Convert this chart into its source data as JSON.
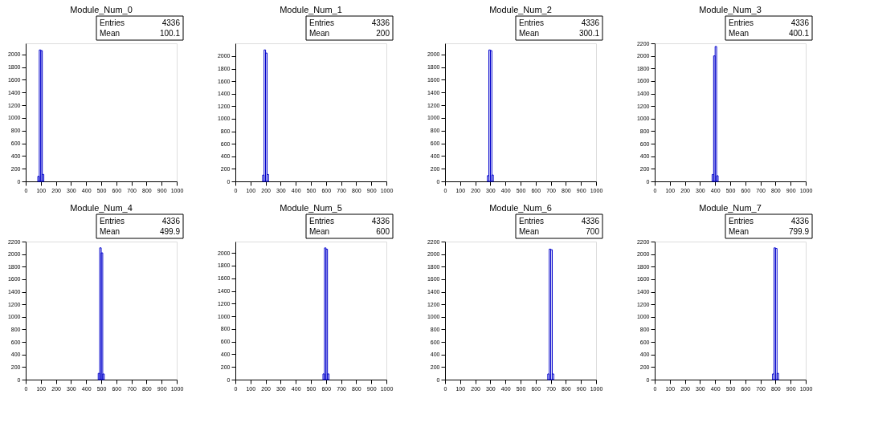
{
  "chart_data": [
    {
      "type": "histogram",
      "title": "Module_Num_0",
      "bins": [
        80,
        90,
        100,
        110,
        120
      ],
      "values": [
        80,
        2070,
        2060,
        110
      ],
      "color": "#0000cc",
      "xlim": [
        0,
        1000
      ],
      "xticks": [
        0,
        100,
        200,
        300,
        400,
        500,
        600,
        700,
        800,
        900,
        1000
      ],
      "ylim": [
        0,
        2174
      ],
      "yticks": [
        0,
        200,
        400,
        600,
        800,
        1000,
        1200,
        1400,
        1600,
        1800,
        2000
      ],
      "annotations": [
        "Entries",
        "4336",
        "Mean",
        "100.1"
      ]
    },
    {
      "type": "histogram",
      "title": "Module_Num_1",
      "bins": [
        180,
        190,
        200,
        210,
        220
      ],
      "values": [
        100,
        2100,
        2050,
        110
      ],
      "color": "#0000cc",
      "xlim": [
        0,
        1000
      ],
      "xticks": [
        0,
        100,
        200,
        300,
        400,
        500,
        600,
        700,
        800,
        900,
        1000
      ],
      "ylim": [
        0,
        2205
      ],
      "yticks": [
        0,
        200,
        400,
        600,
        800,
        1000,
        1200,
        1400,
        1600,
        1800,
        2000
      ],
      "annotations": [
        "Entries",
        "4336",
        "Mean",
        "200"
      ]
    },
    {
      "type": "histogram",
      "title": "Module_Num_2",
      "bins": [
        280,
        290,
        300,
        310,
        320
      ],
      "values": [
        90,
        2070,
        2060,
        100
      ],
      "color": "#0000cc",
      "xlim": [
        0,
        1000
      ],
      "xticks": [
        0,
        100,
        200,
        300,
        400,
        500,
        600,
        700,
        800,
        900,
        1000
      ],
      "ylim": [
        0,
        2174
      ],
      "yticks": [
        0,
        200,
        400,
        600,
        800,
        1000,
        1200,
        1400,
        1600,
        1800,
        2000
      ],
      "annotations": [
        "Entries",
        "4336",
        "Mean",
        "300.1"
      ]
    },
    {
      "type": "histogram",
      "title": "Module_Num_3",
      "bins": [
        380,
        390,
        400,
        410,
        420
      ],
      "values": [
        110,
        2000,
        2150,
        90
      ],
      "color": "#0000cc",
      "xlim": [
        0,
        1000
      ],
      "xticks": [
        0,
        100,
        200,
        300,
        400,
        500,
        600,
        700,
        800,
        900,
        1000
      ],
      "ylim": [
        0,
        2200
      ],
      "yticks": [
        0,
        200,
        400,
        600,
        800,
        1000,
        1200,
        1400,
        1600,
        1800,
        2000,
        2200
      ],
      "annotations": [
        "Entries",
        "4336",
        "Mean",
        "400.1"
      ]
    },
    {
      "type": "histogram",
      "title": "Module_Num_4",
      "bins": [
        480,
        490,
        500,
        510,
        520
      ],
      "values": [
        100,
        2100,
        2020,
        90
      ],
      "color": "#0000cc",
      "xlim": [
        0,
        1000
      ],
      "xticks": [
        0,
        100,
        200,
        300,
        400,
        500,
        600,
        700,
        800,
        900,
        1000
      ],
      "ylim": [
        0,
        2200
      ],
      "yticks": [
        0,
        200,
        400,
        600,
        800,
        1000,
        1200,
        1400,
        1600,
        1800,
        2000,
        2200
      ],
      "annotations": [
        "Entries",
        "4336",
        "Mean",
        "499.9"
      ]
    },
    {
      "type": "histogram",
      "title": "Module_Num_5",
      "bins": [
        580,
        590,
        600,
        610,
        620
      ],
      "values": [
        90,
        2080,
        2060,
        90
      ],
      "color": "#0000cc",
      "xlim": [
        0,
        1000
      ],
      "xticks": [
        0,
        100,
        200,
        300,
        400,
        500,
        600,
        700,
        800,
        900,
        1000
      ],
      "ylim": [
        0,
        2180
      ],
      "yticks": [
        0,
        200,
        400,
        600,
        800,
        1000,
        1200,
        1400,
        1600,
        1800,
        2000
      ],
      "annotations": [
        "Entries",
        "4336",
        "Mean",
        "600"
      ]
    },
    {
      "type": "histogram",
      "title": "Module_Num_6",
      "bins": [
        680,
        690,
        700,
        710,
        720
      ],
      "values": [
        90,
        2080,
        2070,
        90
      ],
      "color": "#0000cc",
      "xlim": [
        0,
        1000
      ],
      "xticks": [
        0,
        100,
        200,
        300,
        400,
        500,
        600,
        700,
        800,
        900,
        1000
      ],
      "ylim": [
        0,
        2200
      ],
      "yticks": [
        0,
        200,
        400,
        600,
        800,
        1000,
        1200,
        1400,
        1600,
        1800,
        2000,
        2200
      ],
      "annotations": [
        "Entries",
        "4336",
        "Mean",
        "700"
      ]
    },
    {
      "type": "histogram",
      "title": "Module_Num_7",
      "bins": [
        780,
        790,
        800,
        810,
        820
      ],
      "values": [
        90,
        2100,
        2090,
        100
      ],
      "color": "#0000cc",
      "xlim": [
        0,
        1000
      ],
      "xticks": [
        0,
        100,
        200,
        300,
        400,
        500,
        600,
        700,
        800,
        900,
        1000
      ],
      "ylim": [
        0,
        2200
      ],
      "yticks": [
        0,
        200,
        400,
        600,
        800,
        1000,
        1200,
        1400,
        1600,
        1800,
        2000,
        2200
      ],
      "annotations": [
        "Entries",
        "4336",
        "Mean",
        "799.9"
      ]
    }
  ]
}
